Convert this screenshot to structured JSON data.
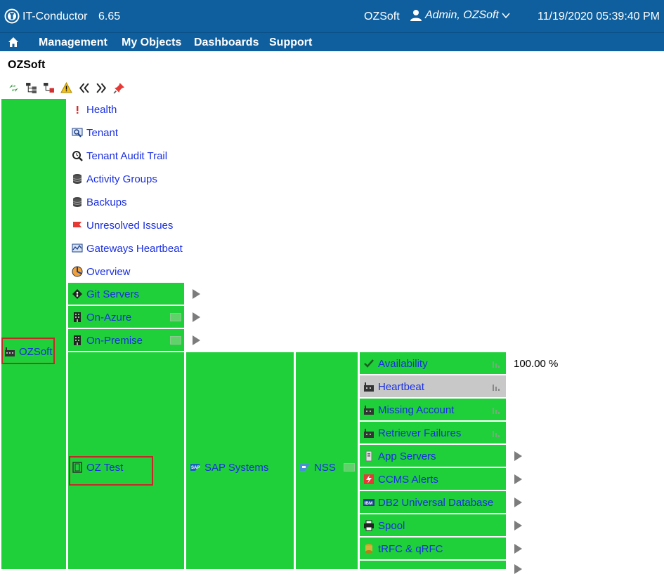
{
  "header": {
    "app_name": "IT-Conductor",
    "version": "6.65",
    "tenant": "OZSoft",
    "user": "Admin, OZSoft",
    "datetime": "11/19/2020 05:39:40 PM"
  },
  "menu": [
    "Management",
    "My Objects",
    "Dashboards",
    "Support"
  ],
  "page": {
    "title": "OZSoft"
  },
  "root": {
    "label": "OZSoft"
  },
  "top_items": [
    "Health",
    "Tenant",
    "Tenant Audit Trail",
    "Activity Groups",
    "Backups",
    "Unresolved Issues",
    "Gateways Heartbeat",
    "Overview"
  ],
  "groups": [
    "Git Servers",
    "On-Azure",
    "On-Premise"
  ],
  "path": {
    "system": "OZ Test",
    "category": "SAP Systems",
    "sid": "NSS"
  },
  "metrics": [
    {
      "label": "Availability",
      "value": "100.00 %"
    },
    {
      "label": "Heartbeat"
    },
    {
      "label": "Missing Account"
    },
    {
      "label": "Retriever Failures"
    },
    {
      "label": "App Servers"
    },
    {
      "label": "CCMS Alerts"
    },
    {
      "label": "DB2 Universal Database"
    },
    {
      "label": "Spool"
    },
    {
      "label": "tRFC & qRFC"
    }
  ],
  "colors": {
    "header": "#0f5f9e",
    "tree_green": "#1fd03a",
    "link": "#1a2fe0",
    "selected": "#c8c8c8",
    "highlight": "#c62828"
  },
  "icons": {
    "toolbar": [
      "refresh-icon",
      "tree-icon",
      "tree-filter-icon",
      "warning-icon",
      "collapse-icon",
      "expand-icon",
      "pin-icon"
    ]
  }
}
